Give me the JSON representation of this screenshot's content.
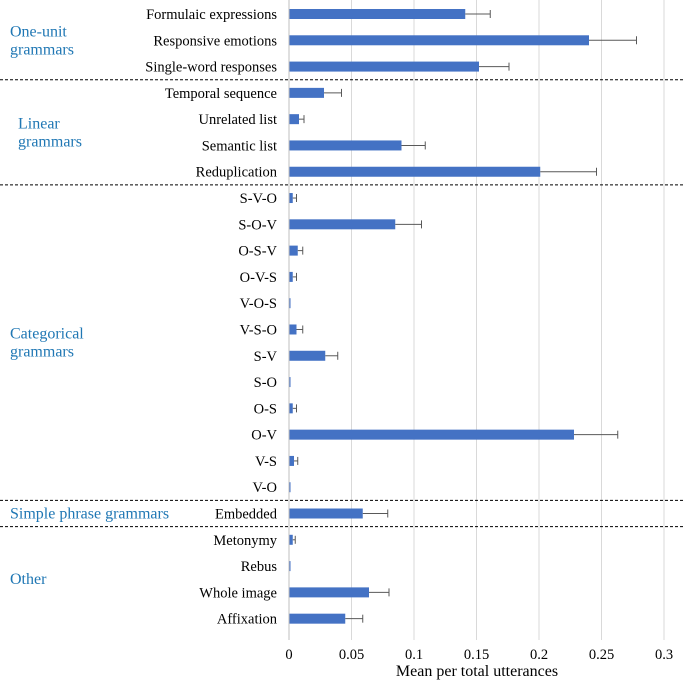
{
  "chart_data": {
    "type": "bar",
    "orientation": "horizontal",
    "xlabel": "Mean per total utterances",
    "xlim": [
      0,
      0.3
    ],
    "xticks": [
      0,
      0.05,
      0.1,
      0.15,
      0.2,
      0.25,
      0.3
    ],
    "xtick_labels": [
      "0",
      "0.05",
      "0.1",
      "0.15",
      "0.2",
      "0.25",
      "0.3"
    ],
    "grid": "vertical",
    "colors": {
      "bar": "#4472c4",
      "group_label": "#1f77b4",
      "grid": "#d9d9d9",
      "error": "#595959"
    },
    "groups": [
      {
        "name": "One-unit grammars",
        "label_lines": [
          "One-unit",
          "grammars"
        ],
        "items": [
          {
            "label": "Formulaic expressions",
            "value": 0.141,
            "error": 0.02
          },
          {
            "label": "Responsive emotions",
            "value": 0.24,
            "error": 0.038
          },
          {
            "label": "Single-word responses",
            "value": 0.152,
            "error": 0.024
          }
        ]
      },
      {
        "name": "Linear grammars",
        "label_lines": [
          "Linear",
          "grammars"
        ],
        "items": [
          {
            "label": "Temporal sequence",
            "value": 0.028,
            "error": 0.014
          },
          {
            "label": "Unrelated list",
            "value": 0.008,
            "error": 0.004
          },
          {
            "label": "Semantic list",
            "value": 0.09,
            "error": 0.019
          },
          {
            "label": "Reduplication",
            "value": 0.201,
            "error": 0.045
          }
        ]
      },
      {
        "name": "Categorical grammars",
        "label_lines": [
          "Categorical",
          "grammars"
        ],
        "items": [
          {
            "label": "S-V-O",
            "value": 0.003,
            "error": 0.003
          },
          {
            "label": "S-O-V",
            "value": 0.085,
            "error": 0.021
          },
          {
            "label": "O-S-V",
            "value": 0.007,
            "error": 0.004
          },
          {
            "label": "O-V-S",
            "value": 0.003,
            "error": 0.003
          },
          {
            "label": "V-O-S",
            "value": 0.0005,
            "error": 0.0
          },
          {
            "label": "V-S-O",
            "value": 0.006,
            "error": 0.005
          },
          {
            "label": "S-V",
            "value": 0.029,
            "error": 0.01
          },
          {
            "label": "S-O",
            "value": 0.0005,
            "error": 0.0
          },
          {
            "label": "O-S",
            "value": 0.003,
            "error": 0.003
          },
          {
            "label": "O-V",
            "value": 0.228,
            "error": 0.035
          },
          {
            "label": "V-S",
            "value": 0.004,
            "error": 0.003
          },
          {
            "label": "V-O",
            "value": 0.0005,
            "error": 0.0
          }
        ]
      },
      {
        "name": "Simple phrase grammars",
        "label_lines": [
          "Simple phrase grammars"
        ],
        "items": [
          {
            "label": "Embedded",
            "value": 0.059,
            "error": 0.02
          }
        ]
      },
      {
        "name": "Other",
        "label_lines": [
          "Other"
        ],
        "items": [
          {
            "label": "Metonymy",
            "value": 0.003,
            "error": 0.002
          },
          {
            "label": "Rebus",
            "value": 0.0005,
            "error": 0.0
          },
          {
            "label": "Whole image",
            "value": 0.064,
            "error": 0.016
          },
          {
            "label": "Affixation",
            "value": 0.045,
            "error": 0.014
          }
        ]
      }
    ]
  }
}
